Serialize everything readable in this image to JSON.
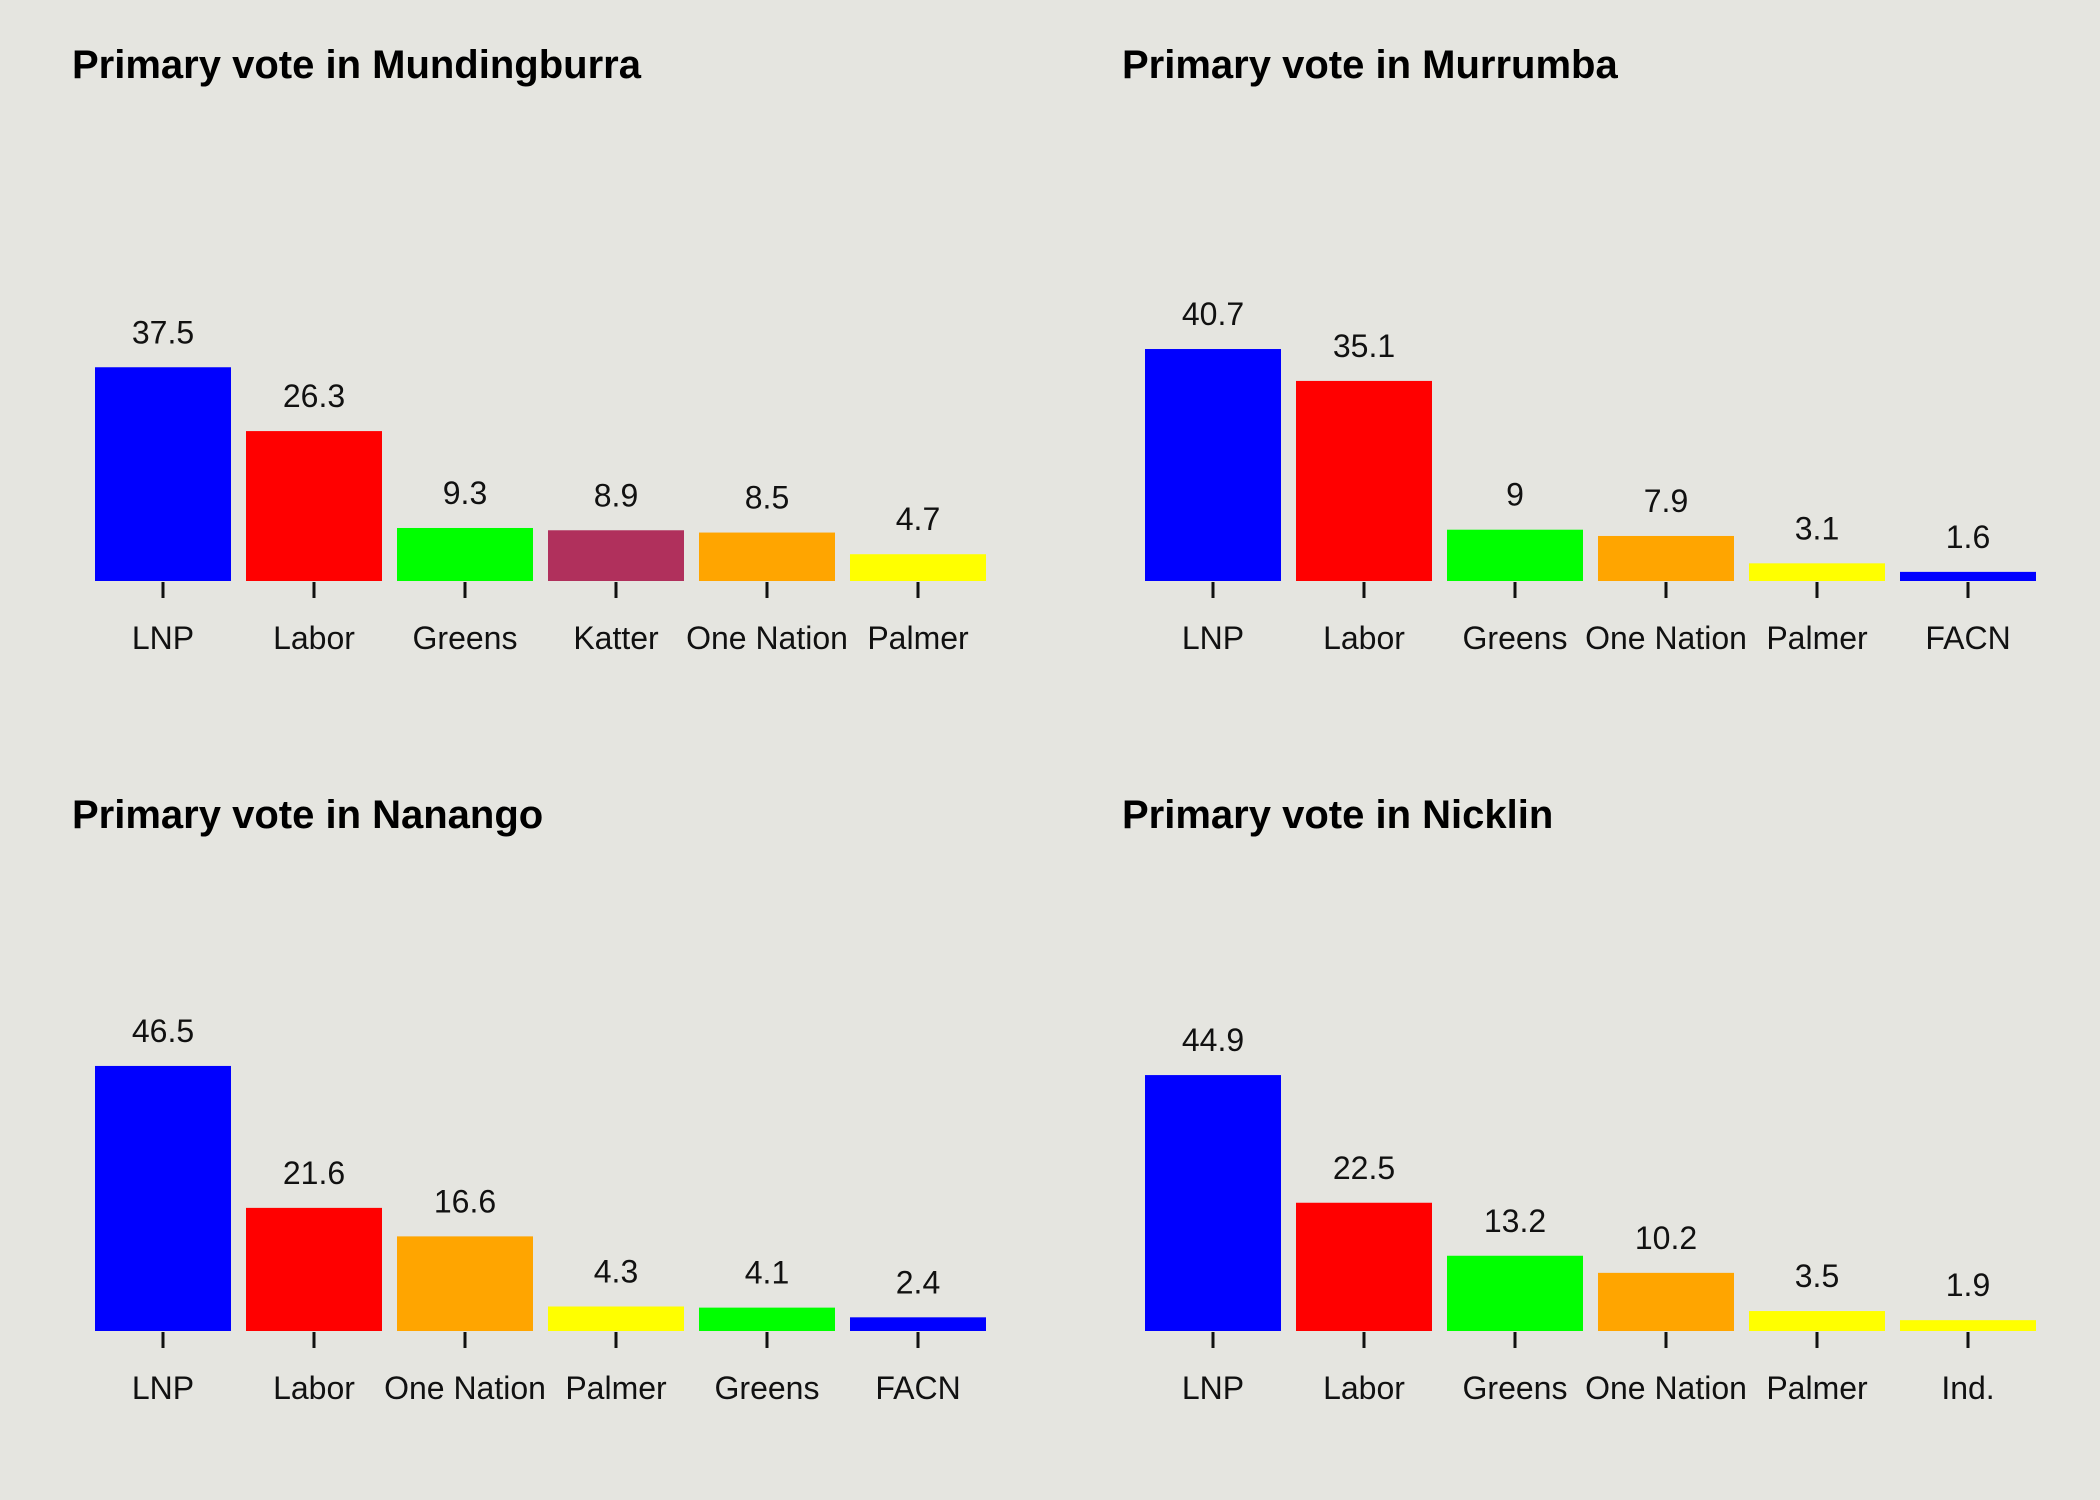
{
  "chart_data": [
    {
      "type": "bar",
      "title": "Primary vote in Mundingburra",
      "xlabel": "",
      "ylabel": "",
      "ylim": [
        0,
        50
      ],
      "grid": false,
      "categories": [
        "LNP",
        "Labor",
        "Greens",
        "Katter",
        "One Nation",
        "Palmer"
      ],
      "values": [
        37.5,
        26.3,
        9.3,
        8.9,
        8.5,
        4.7
      ],
      "colors": [
        "#0000ff",
        "#ff0000",
        "#00ff00",
        "#b0305c",
        "#ffa500",
        "#ffff00"
      ]
    },
    {
      "type": "bar",
      "title": "Primary vote in Murrumba",
      "xlabel": "",
      "ylabel": "",
      "ylim": [
        0,
        50
      ],
      "grid": false,
      "categories": [
        "LNP",
        "Labor",
        "Greens",
        "One Nation",
        "Palmer",
        "FACN"
      ],
      "values": [
        40.7,
        35.1,
        9,
        7.9,
        3.1,
        1.6
      ],
      "colors": [
        "#0000ff",
        "#ff0000",
        "#00ff00",
        "#ffa500",
        "#ffff00",
        "#0000ff"
      ]
    },
    {
      "type": "bar",
      "title": "Primary vote in Nanango",
      "xlabel": "",
      "ylabel": "",
      "ylim": [
        0,
        50
      ],
      "grid": false,
      "categories": [
        "LNP",
        "Labor",
        "One Nation",
        "Palmer",
        "Greens",
        "FACN"
      ],
      "values": [
        46.5,
        21.6,
        16.6,
        4.3,
        4.1,
        2.4
      ],
      "colors": [
        "#0000ff",
        "#ff0000",
        "#ffa500",
        "#ffff00",
        "#00ff00",
        "#0000ff"
      ]
    },
    {
      "type": "bar",
      "title": "Primary vote in Nicklin",
      "xlabel": "",
      "ylabel": "",
      "ylim": [
        0,
        50
      ],
      "grid": false,
      "categories": [
        "LNP",
        "Labor",
        "Greens",
        "One Nation",
        "Palmer",
        "Ind."
      ],
      "values": [
        44.9,
        22.5,
        13.2,
        10.2,
        3.5,
        1.9
      ],
      "colors": [
        "#0000ff",
        "#ff0000",
        "#00ff00",
        "#ffa500",
        "#ffff00",
        "#ffff00"
      ]
    }
  ]
}
